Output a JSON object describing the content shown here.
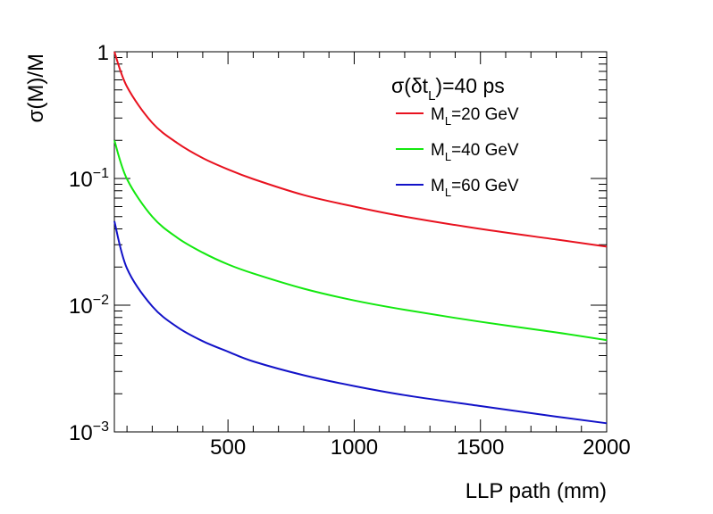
{
  "chart_data": {
    "type": "line",
    "title": "",
    "xlabel": "LLP path (mm)",
    "ylabel": "σ(M)/M",
    "xlim": [
      50,
      2000
    ],
    "ylim": [
      0.001,
      1
    ],
    "yscale": "log",
    "grid": false,
    "legend_position": "top-right",
    "legend_title": "σ(δt_L)=40 ps",
    "x_ticks": [
      {
        "value": 500,
        "label": "500"
      },
      {
        "value": 1000,
        "label": "1000"
      },
      {
        "value": 1500,
        "label": "1500"
      },
      {
        "value": 2000,
        "label": "2000"
      }
    ],
    "y_ticks": [
      {
        "value": 1,
        "base": "1",
        "exp": ""
      },
      {
        "value": 0.1,
        "base": "10",
        "exp": "−1"
      },
      {
        "value": 0.01,
        "base": "10",
        "exp": "−2"
      },
      {
        "value": 0.001,
        "base": "10",
        "exp": "−3"
      }
    ],
    "x": [
      50,
      100,
      200,
      300,
      400,
      500,
      600,
      800,
      1000,
      1200,
      1500,
      1800,
      2000
    ],
    "series": [
      {
        "name": "M_L=20 GeV",
        "label_main": "M",
        "label_sub": "L",
        "label_rest": "=20 GeV",
        "color": "#e8121f",
        "values": [
          1.0,
          0.53,
          0.275,
          0.19,
          0.145,
          0.118,
          0.099,
          0.074,
          0.06,
          0.05,
          0.04,
          0.033,
          0.029
        ]
      },
      {
        "name": "M_L=40 GeV",
        "label_main": "M",
        "label_sub": "L",
        "label_rest": "=40 GeV",
        "color": "#13e80f",
        "values": [
          0.2,
          0.099,
          0.05,
          0.034,
          0.026,
          0.021,
          0.0178,
          0.0135,
          0.0109,
          0.0092,
          0.0074,
          0.0061,
          0.0053
        ]
      },
      {
        "name": "M_L=60 GeV",
        "label_main": "M",
        "label_sub": "L",
        "label_rest": "=60 GeV",
        "color": "#1212c8",
        "values": [
          0.046,
          0.0195,
          0.0098,
          0.0067,
          0.0052,
          0.0043,
          0.0036,
          0.0028,
          0.0023,
          0.00195,
          0.0016,
          0.00132,
          0.00117
        ]
      }
    ]
  },
  "legend": {
    "title_main": "σ(δt",
    "title_sub": "L",
    "title_rest": ")=40 ps"
  }
}
